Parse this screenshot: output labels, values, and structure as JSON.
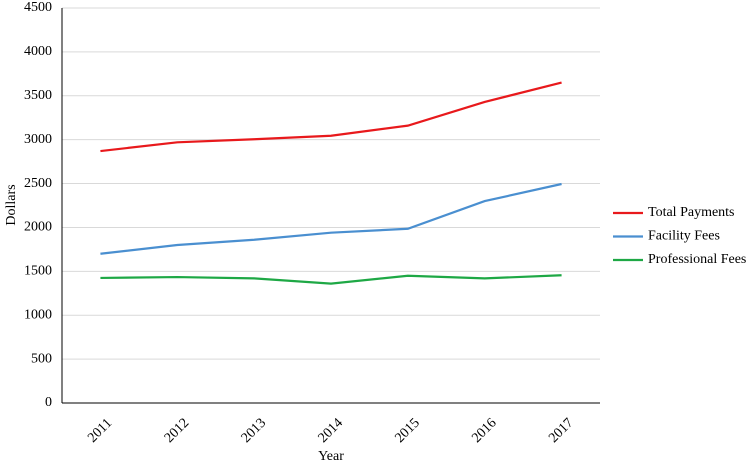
{
  "chart_data": {
    "type": "line",
    "x_label": "Year",
    "y_label": "Dollars",
    "categories": [
      "2011",
      "2012",
      "2013",
      "2014",
      "2015",
      "2016",
      "2017"
    ],
    "series": [
      {
        "name": "Total Payments",
        "color": "#e8191c",
        "values": [
          2870,
          2970,
          3005,
          3045,
          3160,
          3430,
          3650
        ]
      },
      {
        "name": "Facility Fees",
        "color": "#4a8fd0",
        "values": [
          1700,
          1800,
          1860,
          1940,
          1985,
          2300,
          2495
        ]
      },
      {
        "name": "Professional Fees",
        "color": "#1ea845",
        "values": [
          1425,
          1435,
          1420,
          1360,
          1450,
          1420,
          1455
        ]
      }
    ],
    "ylim": [
      0,
      4500
    ],
    "yticks": [
      0,
      500,
      1000,
      1500,
      2000,
      2500,
      3000,
      3500,
      4000,
      4500
    ],
    "grid": true,
    "legend": "right"
  }
}
